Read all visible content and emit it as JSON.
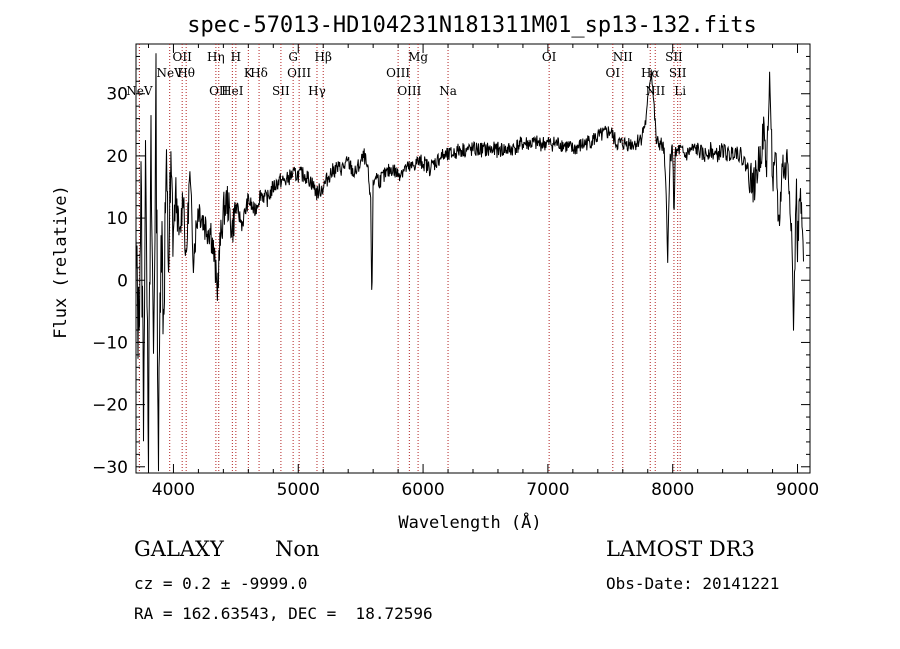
{
  "chart_data": {
    "type": "line",
    "title": "spec-57013-HD104231N181311M01_sp13-132.fits",
    "xlabel": "Wavelength (Å)",
    "ylabel": "Flux (relative)",
    "xlim": [
      3700,
      9100
    ],
    "ylim": [
      -31,
      38
    ],
    "xticks": [
      4000,
      5000,
      6000,
      7000,
      8000,
      9000
    ],
    "yticks": [
      -30,
      -20,
      -10,
      0,
      10,
      20,
      30
    ],
    "series": [
      {
        "name": "spectrum",
        "color": "#000000",
        "anchors": [
          [
            3700,
            3
          ],
          [
            3720,
            -8
          ],
          [
            3740,
            14
          ],
          [
            3760,
            -18
          ],
          [
            3780,
            22
          ],
          [
            3800,
            -25
          ],
          [
            3820,
            19
          ],
          [
            3840,
            -12
          ],
          [
            3860,
            28
          ],
          [
            3880,
            -30
          ],
          [
            3900,
            12
          ],
          [
            3920,
            -5
          ],
          [
            3940,
            16
          ],
          [
            3960,
            4
          ],
          [
            3980,
            15
          ],
          [
            4000,
            8
          ],
          [
            4020,
            14
          ],
          [
            4050,
            6
          ],
          [
            4080,
            15
          ],
          [
            4100,
            2
          ],
          [
            4130,
            17
          ],
          [
            4160,
            4
          ],
          [
            4200,
            12
          ],
          [
            4250,
            9
          ],
          [
            4300,
            8
          ],
          [
            4330,
            3
          ],
          [
            4350,
            -2
          ],
          [
            4370,
            5
          ],
          [
            4400,
            11
          ],
          [
            4430,
            13
          ],
          [
            4470,
            8
          ],
          [
            4500,
            12
          ],
          [
            4550,
            9
          ],
          [
            4600,
            13
          ],
          [
            4650,
            11
          ],
          [
            4700,
            14
          ],
          [
            4750,
            13
          ],
          [
            4800,
            15
          ],
          [
            4850,
            16
          ],
          [
            4900,
            16
          ],
          [
            4950,
            17
          ],
          [
            5000,
            17
          ],
          [
            5050,
            17
          ],
          [
            5100,
            16
          ],
          [
            5150,
            14
          ],
          [
            5200,
            15
          ],
          [
            5250,
            17
          ],
          [
            5300,
            18
          ],
          [
            5350,
            18
          ],
          [
            5400,
            19
          ],
          [
            5450,
            17
          ],
          [
            5500,
            19
          ],
          [
            5530,
            20
          ],
          [
            5560,
            17
          ],
          [
            5580,
            12
          ],
          [
            5590,
            -4
          ],
          [
            5600,
            15
          ],
          [
            5620,
            17
          ],
          [
            5650,
            16
          ],
          [
            5700,
            17
          ],
          [
            5750,
            18
          ],
          [
            5800,
            17
          ],
          [
            5850,
            18
          ],
          [
            5900,
            18
          ],
          [
            5950,
            19
          ],
          [
            6000,
            19
          ],
          [
            6050,
            18
          ],
          [
            6100,
            19
          ],
          [
            6150,
            20
          ],
          [
            6200,
            20
          ],
          [
            6300,
            21
          ],
          [
            6400,
            21
          ],
          [
            6500,
            21
          ],
          [
            6600,
            21
          ],
          [
            6700,
            21
          ],
          [
            6800,
            22
          ],
          [
            6900,
            22
          ],
          [
            7000,
            22
          ],
          [
            7100,
            22
          ],
          [
            7200,
            21
          ],
          [
            7300,
            22
          ],
          [
            7400,
            23
          ],
          [
            7500,
            24
          ],
          [
            7550,
            22
          ],
          [
            7600,
            22
          ],
          [
            7650,
            22
          ],
          [
            7700,
            22
          ],
          [
            7750,
            23
          ],
          [
            7790,
            26
          ],
          [
            7810,
            31
          ],
          [
            7830,
            34
          ],
          [
            7850,
            28
          ],
          [
            7870,
            22
          ],
          [
            7900,
            22
          ],
          [
            7930,
            21
          ],
          [
            7950,
            12
          ],
          [
            7960,
            4
          ],
          [
            7980,
            20
          ],
          [
            8000,
            21
          ],
          [
            8010,
            10
          ],
          [
            8020,
            20
          ],
          [
            8050,
            21
          ],
          [
            8100,
            20
          ],
          [
            8150,
            21
          ],
          [
            8200,
            21
          ],
          [
            8250,
            20
          ],
          [
            8300,
            21
          ],
          [
            8350,
            20
          ],
          [
            8400,
            21
          ],
          [
            8450,
            20
          ],
          [
            8500,
            21
          ],
          [
            8550,
            20
          ],
          [
            8600,
            18
          ],
          [
            8650,
            15
          ],
          [
            8700,
            20
          ],
          [
            8730,
            24
          ],
          [
            8750,
            18
          ],
          [
            8780,
            33
          ],
          [
            8800,
            15
          ],
          [
            8830,
            19
          ],
          [
            8850,
            8
          ],
          [
            8880,
            19
          ],
          [
            8900,
            17
          ],
          [
            8920,
            20
          ],
          [
            8950,
            10
          ],
          [
            8970,
            -8
          ],
          [
            8990,
            16
          ],
          [
            9000,
            5
          ],
          [
            9020,
            14
          ],
          [
            9050,
            3
          ]
        ]
      }
    ],
    "emission_lines": [
      {
        "wl": 3727,
        "row": 2,
        "label": "NeV"
      },
      {
        "wl": 3970,
        "row": 1,
        "label": "NeV"
      },
      {
        "wl": 4070,
        "row": 0,
        "label": "OII"
      },
      {
        "wl": 4102,
        "row": 1,
        "label": "Hθ"
      },
      {
        "wl": 4340,
        "row": 0,
        "label": "Hη"
      },
      {
        "wl": 4363,
        "row": 2,
        "label": "OII"
      },
      {
        "wl": 4472,
        "row": 2,
        "label": "HeI"
      },
      {
        "wl": 4500,
        "row": 0,
        "label": "H"
      },
      {
        "wl": 4600,
        "row": 1,
        "label": "K"
      },
      {
        "wl": 4686,
        "row": 1,
        "label": "Hδ"
      },
      {
        "wl": 4861,
        "row": 2,
        "label": "SII"
      },
      {
        "wl": 4959,
        "row": 0,
        "label": "G"
      },
      {
        "wl": 5007,
        "row": 1,
        "label": "OIII"
      },
      {
        "wl": 5150,
        "row": 2,
        "label": "Hγ"
      },
      {
        "wl": 5200,
        "row": 0,
        "label": "Hβ"
      },
      {
        "wl": 5800,
        "row": 1,
        "label": "OIII"
      },
      {
        "wl": 5890,
        "row": 2,
        "label": "OIII"
      },
      {
        "wl": 5960,
        "row": 0,
        "label": "Mg"
      },
      {
        "wl": 6200,
        "row": 2,
        "label": "Na"
      },
      {
        "wl": 7010,
        "row": 0,
        "label": "OI"
      },
      {
        "wl": 7520,
        "row": 1,
        "label": "OI"
      },
      {
        "wl": 7600,
        "row": 0,
        "label": "NII"
      },
      {
        "wl": 7820,
        "row": 1,
        "label": "Hα"
      },
      {
        "wl": 7860,
        "row": 2,
        "label": "NII"
      },
      {
        "wl": 8010,
        "row": 0,
        "label": "SII"
      },
      {
        "wl": 8040,
        "row": 1,
        "label": "SII"
      },
      {
        "wl": 8060,
        "row": 2,
        "label": "Li"
      }
    ]
  },
  "footer": {
    "class_label": "GALAXY",
    "subclass_label": "Non",
    "survey_label": "LAMOST DR3",
    "cz_text": "cz = 0.2 ± -9999.0",
    "obs_date_text": "Obs-Date: 20141221",
    "coords_text": "RA = 162.63543, DEC =  18.72596"
  },
  "colors": {
    "line_marker": "#b22222",
    "spectrum": "#000000",
    "axes": "#000000"
  }
}
